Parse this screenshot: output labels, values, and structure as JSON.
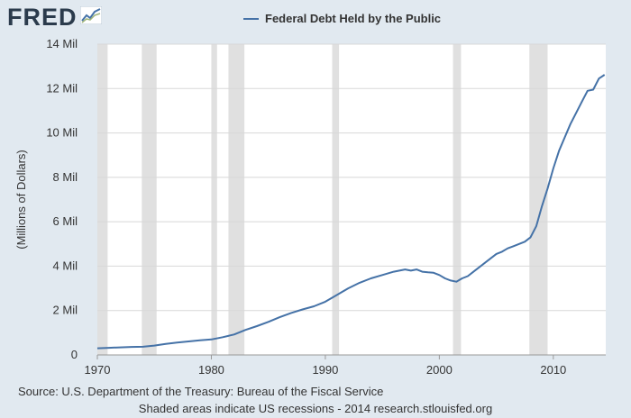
{
  "brand": {
    "name": "FRED",
    "icon": "fred-chart-logo-icon"
  },
  "colors": {
    "background": "#e1e9f0",
    "plot_background": "#ffffff",
    "series": "#4572a7",
    "recession": "#e0e0e0",
    "grid": "#d8d8d8"
  },
  "footer": {
    "source": "Source: U.S. Department of the Treasury: Bureau of the Fiscal Service",
    "note": "Shaded areas indicate US recessions - 2014 research.stlouisfed.org"
  },
  "chart_data": {
    "type": "line",
    "title": "",
    "legend": "Federal Debt Held by the Public",
    "legend_position": "top-center",
    "xlabel": "",
    "ylabel": "(Millions of Dollars)",
    "xlim": [
      1970,
      2014.6
    ],
    "ylim": [
      0,
      14000000
    ],
    "grid": true,
    "x_ticks": [
      {
        "value": 1970,
        "label": "1970"
      },
      {
        "value": 1980,
        "label": "1980"
      },
      {
        "value": 1990,
        "label": "1990"
      },
      {
        "value": 2000,
        "label": "2000"
      },
      {
        "value": 2010,
        "label": "2010"
      }
    ],
    "y_ticks": [
      {
        "value": 0,
        "label": "0"
      },
      {
        "value": 2000000,
        "label": "2 Mil"
      },
      {
        "value": 4000000,
        "label": "4 Mil"
      },
      {
        "value": 6000000,
        "label": "6 Mil"
      },
      {
        "value": 8000000,
        "label": "8 Mil"
      },
      {
        "value": 10000000,
        "label": "10 Mil"
      },
      {
        "value": 12000000,
        "label": "12 Mil"
      },
      {
        "value": 14000000,
        "label": "14 Mil"
      }
    ],
    "recessions": [
      [
        1970.0,
        1970.9
      ],
      [
        1973.9,
        1975.2
      ],
      [
        1980.0,
        1980.5
      ],
      [
        1981.5,
        1982.9
      ],
      [
        1990.6,
        1991.2
      ],
      [
        2001.2,
        2001.9
      ],
      [
        2007.9,
        2009.5
      ]
    ],
    "series": [
      {
        "name": "Federal Debt Held by the Public",
        "x": [
          1970.0,
          1971.0,
          1972.0,
          1973.0,
          1974.0,
          1975.0,
          1976.0,
          1977.0,
          1978.0,
          1979.0,
          1980.0,
          1981.0,
          1982.0,
          1983.0,
          1984.0,
          1985.0,
          1986.0,
          1987.0,
          1988.0,
          1989.0,
          1990.0,
          1991.0,
          1992.0,
          1993.0,
          1994.0,
          1995.0,
          1996.0,
          1997.0,
          1997.5,
          1998.0,
          1998.5,
          1999.0,
          1999.5,
          2000.0,
          2000.5,
          2001.0,
          2001.5,
          2002.0,
          2002.5,
          2003.0,
          2003.5,
          2004.0,
          2004.5,
          2005.0,
          2005.5,
          2006.0,
          2006.5,
          2007.0,
          2007.5,
          2008.0,
          2008.5,
          2009.0,
          2009.5,
          2010.0,
          2010.5,
          2011.0,
          2011.5,
          2012.0,
          2012.5,
          2013.0,
          2013.5,
          2014.0,
          2014.5
        ],
        "values": [
          300000,
          320000,
          340000,
          360000,
          370000,
          420000,
          500000,
          560000,
          610000,
          660000,
          700000,
          800000,
          920000,
          1130000,
          1300000,
          1490000,
          1700000,
          1890000,
          2050000,
          2190000,
          2400000,
          2700000,
          3000000,
          3250000,
          3450000,
          3600000,
          3750000,
          3850000,
          3800000,
          3850000,
          3750000,
          3720000,
          3700000,
          3600000,
          3450000,
          3350000,
          3300000,
          3450000,
          3550000,
          3750000,
          3950000,
          4150000,
          4350000,
          4550000,
          4650000,
          4800000,
          4900000,
          5000000,
          5100000,
          5300000,
          5800000,
          6700000,
          7500000,
          8400000,
          9200000,
          9800000,
          10400000,
          10900000,
          11400000,
          11900000,
          11950000,
          12450000,
          12620000
        ]
      }
    ]
  }
}
